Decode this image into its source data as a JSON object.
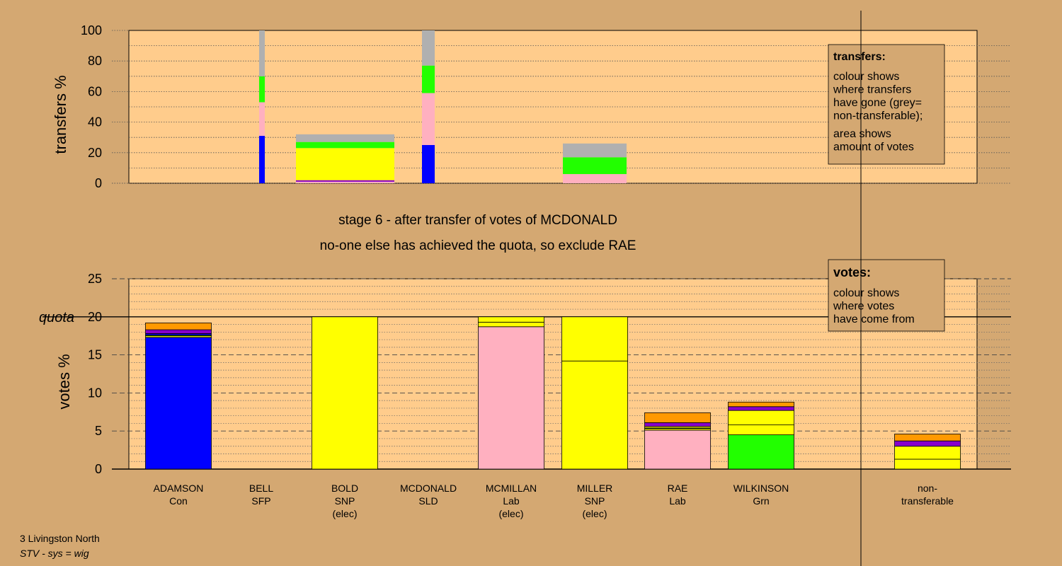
{
  "stage_title": "stage 6 - after transfer of votes of MCDONALD",
  "stage_note": "no-one else has achieved the quota, so exclude RAE",
  "footer": {
    "constituency": "3 Livingston North",
    "system": "STV - sys = wig"
  },
  "colors": {
    "background": "#d4a872",
    "plot": "#ffcc8c",
    "Con": "#0000ff",
    "Lab": "#ffb0c0",
    "SNP": "#ffff00",
    "Grn": "#22ff00",
    "SLD": "#ff9900",
    "SFP": "#8800cc",
    "nontransferable": "#b0b0b0"
  },
  "chart_data": [
    {
      "type": "bar",
      "name": "transfers",
      "ylabel": "transfers %",
      "ylim": [
        0,
        100
      ],
      "yticks": [
        0,
        20,
        40,
        60,
        80,
        100
      ],
      "legend": {
        "title": "transfers:",
        "lines": [
          "colour shows",
          "where transfers",
          "have gone (grey=",
          "non-transferable);",
          "area shows",
          "amount of votes"
        ]
      },
      "bars": [
        {
          "from": "BELL",
          "size": "narrow",
          "segments": [
            {
              "source": "Con",
              "value": 31
            },
            {
              "source": "Lab",
              "value": 22
            },
            {
              "source": "Grn",
              "value": 17
            },
            {
              "source": "nontransferable",
              "value": 30
            }
          ]
        },
        {
          "from": "BOLD",
          "size": "wide",
          "segments": [
            {
              "source": "Lab",
              "value": 1
            },
            {
              "source": "SFP",
              "value": 1
            },
            {
              "source": "SNP",
              "value": 21
            },
            {
              "source": "Grn",
              "value": 4
            },
            {
              "source": "nontransferable",
              "value": 5
            }
          ]
        },
        {
          "from": "MCDONALD",
          "size": "narrow",
          "segments": [
            {
              "source": "Con",
              "value": 25
            },
            {
              "source": "Lab",
              "value": 34
            },
            {
              "source": "Grn",
              "value": 18
            },
            {
              "source": "nontransferable",
              "value": 23
            }
          ]
        },
        {
          "from": "MILLER",
          "size": "medium",
          "segments": [
            {
              "source": "Lab",
              "value": 6
            },
            {
              "source": "Grn",
              "value": 11
            },
            {
              "source": "nontransferable",
              "value": 9
            }
          ]
        }
      ]
    },
    {
      "type": "bar",
      "name": "votes",
      "ylabel": "votes %",
      "ylim": [
        0,
        25
      ],
      "yticks": [
        0,
        5,
        10,
        15,
        20,
        25
      ],
      "quota": 20,
      "quota_label": "quota",
      "legend": {
        "title": "votes:",
        "lines": [
          "colour shows",
          "where votes",
          "have come from"
        ]
      },
      "candidates": [
        {
          "name": "ADAMSON",
          "party": "Con",
          "elected": "",
          "segments": [
            {
              "source": "Con",
              "value": 17.3
            },
            {
              "source": "SNP",
              "value": 0.2
            },
            {
              "source": "Grn",
              "value": 0.1
            },
            {
              "source": "Con",
              "value": 0.2
            },
            {
              "source": "SFP",
              "value": 0.5
            },
            {
              "source": "SLD",
              "value": 0.9
            }
          ]
        },
        {
          "name": "BELL",
          "party": "SFP",
          "elected": "",
          "segments": []
        },
        {
          "name": "BOLD",
          "party": "SNP",
          "elected": "(elec)",
          "segments": [
            {
              "source": "SNP",
              "value": 20
            }
          ]
        },
        {
          "name": "MCDONALD",
          "party": "SLD",
          "elected": "",
          "segments": []
        },
        {
          "name": "MCMILLAN",
          "party": "Lab",
          "elected": "(elec)",
          "segments": [
            {
              "source": "Lab",
              "value": 18.7
            },
            {
              "source": "SNP",
              "value": 0.6
            },
            {
              "source": "SNP",
              "value": 0.7
            }
          ]
        },
        {
          "name": "MILLER",
          "party": "SNP",
          "elected": "(elec)",
          "segments": [
            {
              "source": "SNP",
              "value": 14.2
            },
            {
              "source": "SNP",
              "value": 5.8
            }
          ]
        },
        {
          "name": "RAE",
          "party": "Lab",
          "elected": "",
          "segments": [
            {
              "source": "Lab",
              "value": 5.1
            },
            {
              "source": "SNP",
              "value": 0.2
            },
            {
              "source": "Grn",
              "value": 0.1
            },
            {
              "source": "SNP",
              "value": 0.2
            },
            {
              "source": "SFP",
              "value": 0.5
            },
            {
              "source": "SLD",
              "value": 1.3
            }
          ]
        },
        {
          "name": "WILKINSON",
          "party": "Grn",
          "elected": "",
          "segments": [
            {
              "source": "Grn",
              "value": 4.5
            },
            {
              "source": "SNP",
              "value": 1.3
            },
            {
              "source": "SNP",
              "value": 1.9
            },
            {
              "source": "SFP",
              "value": 0.5
            },
            {
              "source": "SLD",
              "value": 0.6
            }
          ]
        },
        {
          "name": "non-",
          "party": "transferable",
          "elected": "",
          "segments": [
            {
              "source": "SNP",
              "value": 1.3
            },
            {
              "source": "SNP",
              "value": 1.7
            },
            {
              "source": "SFP",
              "value": 0.7
            },
            {
              "source": "SLD",
              "value": 0.9
            }
          ]
        }
      ]
    }
  ]
}
